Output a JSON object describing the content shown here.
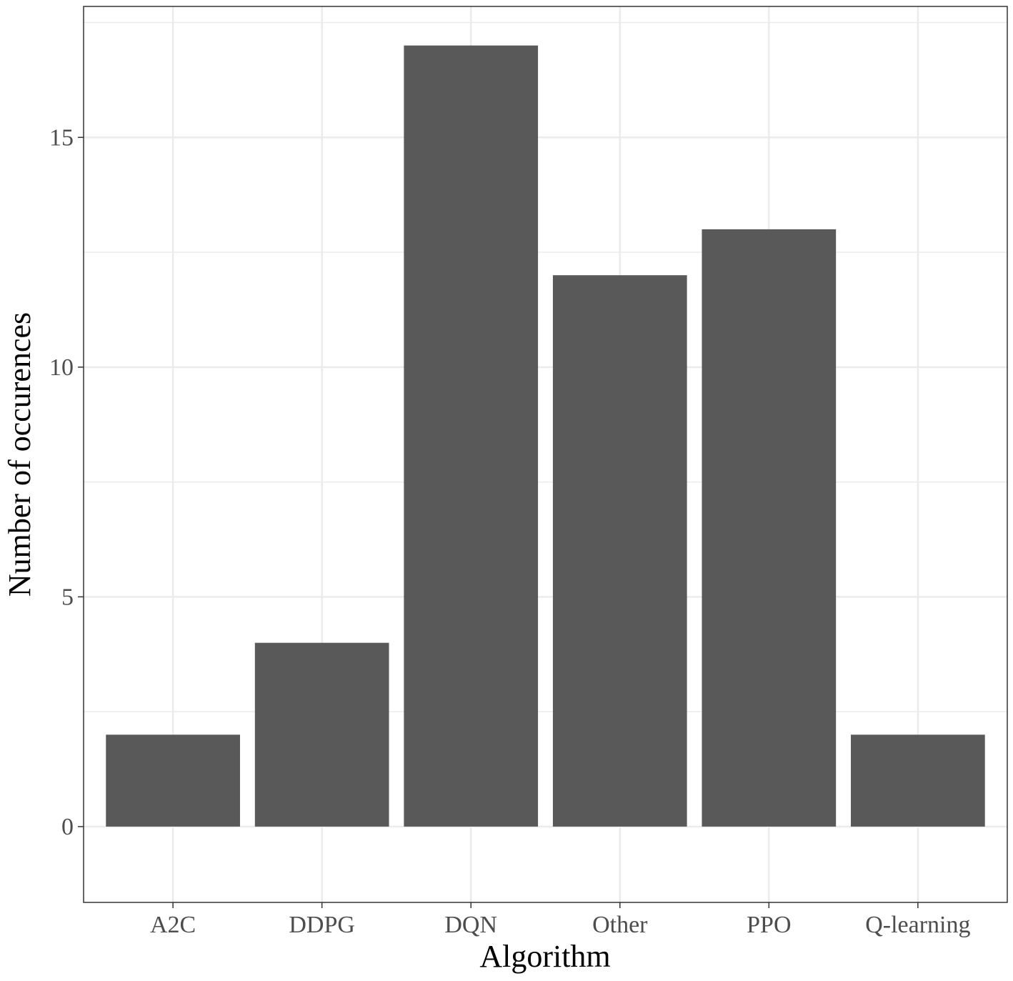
{
  "chart_data": {
    "type": "bar",
    "xlabel": "Algorithm",
    "ylabel": "Number of occurences",
    "categories": [
      "A2C",
      "DDPG",
      "DQN",
      "Other",
      "PPO",
      "Q-learning"
    ],
    "values": [
      2,
      4,
      17,
      12,
      13,
      2
    ],
    "ylim": [
      -1.65,
      17.85
    ],
    "yticks": [
      0,
      5,
      10,
      15
    ],
    "y_minor_ticks": [
      2.5,
      7.5,
      12.5,
      17.5
    ],
    "grid": true,
    "theme": "bw",
    "colors": {
      "bar": "#595959",
      "grid": "#ebebeb",
      "panel_border": "#333333",
      "tick_text": "#4d4d4d",
      "axis_title": "#000000"
    }
  }
}
